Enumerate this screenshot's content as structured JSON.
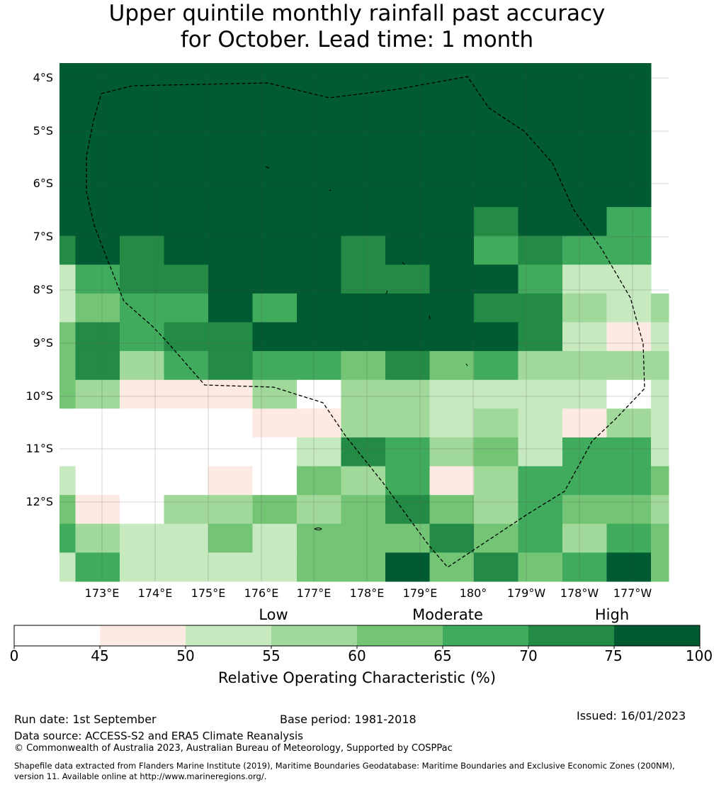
{
  "title": {
    "line1": "Upper quintile monthly rainfall past accuracy",
    "line2": "for October. Lead time: 1 month"
  },
  "chart_data": {
    "type": "heatmap",
    "variable": "Relative Operating Characteristic (%)",
    "lat_labels": [
      "4°S",
      "5°S",
      "6°S",
      "7°S",
      "8°S",
      "9°S",
      "10°S",
      "11°S",
      "12°S"
    ],
    "lon_labels": [
      "173°E",
      "174°E",
      "175°E",
      "176°E",
      "177°E",
      "178°E",
      "179°E",
      "180°",
      "179°W",
      "178°W",
      "177°W"
    ],
    "colorbar": {
      "ticks": [
        "0",
        "45",
        "50",
        "55",
        "60",
        "65",
        "70",
        "75",
        "100"
      ],
      "bins": [
        {
          "from": 0,
          "to": 45,
          "color": "#ffffff"
        },
        {
          "from": 45,
          "to": 50,
          "color": "#fdeae2"
        },
        {
          "from": 50,
          "to": 55,
          "color": "#c7e9c0"
        },
        {
          "from": 55,
          "to": 60,
          "color": "#a1d99b"
        },
        {
          "from": 60,
          "to": 65,
          "color": "#74c476"
        },
        {
          "from": 65,
          "to": 70,
          "color": "#41ab5d"
        },
        {
          "from": 70,
          "to": 75,
          "color": "#238b45"
        },
        {
          "from": 75,
          "to": 100,
          "color": "#005a32"
        }
      ],
      "categories": [
        {
          "label": "Low"
        },
        {
          "label": "Moderate"
        },
        {
          "label": "High"
        }
      ],
      "label": "Relative Operating Characteristic (%)"
    },
    "grid_bin_index": [
      [
        7,
        7,
        7,
        7,
        7,
        7,
        7,
        7,
        7,
        7,
        7,
        7,
        7,
        7
      ],
      [
        7,
        7,
        7,
        7,
        7,
        7,
        7,
        7,
        7,
        7,
        7,
        7,
        7,
        7
      ],
      [
        7,
        7,
        7,
        7,
        7,
        7,
        7,
        7,
        7,
        7,
        7,
        7,
        7,
        7
      ],
      [
        7,
        7,
        7,
        7,
        7,
        7,
        7,
        7,
        7,
        7,
        7,
        7,
        7,
        7
      ],
      [
        7,
        7,
        7,
        7,
        7,
        7,
        7,
        7,
        7,
        7,
        7,
        7,
        7,
        7
      ],
      [
        7,
        7,
        7,
        7,
        7,
        7,
        7,
        7,
        7,
        7,
        6,
        7,
        7,
        5
      ],
      [
        6,
        7,
        6,
        7,
        7,
        7,
        7,
        6,
        7,
        7,
        5,
        6,
        5,
        5
      ],
      [
        2,
        5,
        6,
        6,
        7,
        7,
        7,
        6,
        6,
        7,
        7,
        5,
        2,
        2
      ],
      [
        2,
        4,
        5,
        5,
        7,
        5,
        7,
        7,
        7,
        7,
        6,
        6,
        3,
        2,
        3
      ],
      [
        4,
        6,
        5,
        6,
        6,
        7,
        7,
        7,
        7,
        7,
        7,
        6,
        2,
        1,
        2
      ],
      [
        4,
        6,
        3,
        5,
        6,
        5,
        5,
        4,
        6,
        4,
        5,
        3,
        3,
        3,
        3
      ],
      [
        4,
        3,
        1,
        1,
        1,
        3,
        0,
        3,
        3,
        2,
        2,
        2,
        2,
        0,
        2
      ],
      [
        0,
        0,
        0,
        0,
        0,
        1,
        1,
        3,
        3,
        2,
        3,
        2,
        1,
        3,
        2
      ],
      [
        0,
        0,
        0,
        0,
        0,
        0,
        2,
        6,
        5,
        3,
        4,
        2,
        5,
        5,
        2
      ],
      [
        2,
        0,
        0,
        0,
        1,
        0,
        4,
        3,
        5,
        1,
        3,
        5,
        5,
        5,
        4
      ],
      [
        4,
        1,
        0,
        3,
        3,
        4,
        3,
        4,
        6,
        4,
        3,
        5,
        4,
        4,
        3
      ],
      [
        5,
        3,
        2,
        2,
        4,
        2,
        4,
        4,
        4,
        6,
        4,
        5,
        3,
        5,
        4
      ],
      [
        2,
        5,
        2,
        2,
        2,
        2,
        4,
        4,
        7,
        4,
        6,
        4,
        5,
        7,
        4
      ]
    ],
    "grid_rows": [
      "0",
      "0",
      "0",
      "0",
      "0",
      "0",
      "0",
      "0",
      "0",
      "0",
      "0",
      "0",
      "0",
      "0",
      "0",
      "0",
      "0",
      "0"
    ]
  },
  "footer": {
    "run_date": "Run date: 1st September",
    "base_period": "Base period: 1981-2018",
    "issued": "Issued: 16/01/2023",
    "data_source": "Data source: ACCESS-S2 and ERA5 Climate Reanalysis",
    "copyright": "© Commonwealth of Australia 2023, Australian Bureau of Meteorology, Supported by COSPPac",
    "shapefile_line1": "Shapefile data extracted from Flanders Marine Institute (2019), Maritime Boundaries Geodatabase: Maritime Boundaries and Exclusive Economic Zones (200NM),",
    "shapefile_line2": "version 11. Available online at http://www.marineregions.org/."
  }
}
